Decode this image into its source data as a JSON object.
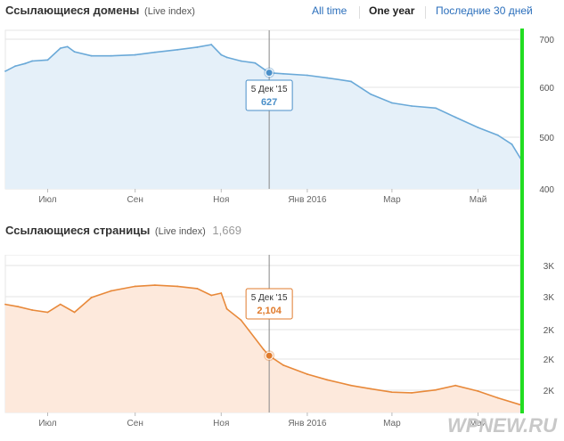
{
  "header": {
    "ranges": [
      "All time",
      "One year",
      "Последние 30 дней"
    ],
    "selected_range": "One year"
  },
  "watermark": "WPNEW.RU",
  "colors": {
    "referring_domains": "#6aa9d8",
    "referring_pages": "#e8893a",
    "marker_line": "#22dd22"
  },
  "chart_data": [
    {
      "type": "area",
      "title": "Ссылающиеся домены",
      "subtitle": "(Live index)",
      "x": [
        "2015-06-01",
        "2015-06-08",
        "2015-06-15",
        "2015-06-20",
        "2015-07-01",
        "2015-07-10",
        "2015-07-15",
        "2015-07-20",
        "2015-08-01",
        "2015-08-15",
        "2015-09-01",
        "2015-09-15",
        "2015-10-01",
        "2015-10-15",
        "2015-10-25",
        "2015-11-01",
        "2015-11-05",
        "2015-11-15",
        "2015-11-25",
        "2015-12-05",
        "2015-12-15",
        "2016-01-01",
        "2016-01-15",
        "2016-02-01",
        "2016-02-15",
        "2016-03-01",
        "2016-03-15",
        "2016-04-01",
        "2016-04-15",
        "2016-05-01",
        "2016-05-15",
        "2016-05-25",
        "2016-05-31"
      ],
      "values": [
        630,
        640,
        645,
        650,
        652,
        675,
        678,
        668,
        660,
        660,
        662,
        667,
        672,
        677,
        682,
        662,
        657,
        650,
        646,
        627,
        625,
        622,
        617,
        610,
        585,
        568,
        562,
        558,
        540,
        520,
        505,
        487,
        460
      ],
      "tick_labels_x": [
        "Июл",
        "Сен",
        "Ноя",
        "Янв 2016",
        "Мар",
        "Май"
      ],
      "tick_labels_y": [
        "700",
        "600",
        "500",
        "400"
      ],
      "ylim": [
        400,
        710
      ],
      "tooltip": {
        "date": "5 Дек '15",
        "value": "627"
      }
    },
    {
      "type": "area",
      "title": "Ссылающиеся страницы",
      "subtitle": "(Live index)",
      "total": "1,669",
      "x": [
        "2015-06-01",
        "2015-06-10",
        "2015-06-20",
        "2015-07-01",
        "2015-07-10",
        "2015-07-20",
        "2015-08-01",
        "2015-08-15",
        "2015-09-01",
        "2015-09-15",
        "2015-10-01",
        "2015-10-15",
        "2015-10-25",
        "2015-11-01",
        "2015-11-05",
        "2015-11-15",
        "2015-12-01",
        "2015-12-05",
        "2015-12-15",
        "2016-01-01",
        "2016-01-15",
        "2016-02-01",
        "2016-02-15",
        "2016-03-01",
        "2016-03-15",
        "2016-04-01",
        "2016-04-15",
        "2016-05-01",
        "2016-05-15",
        "2016-05-31"
      ],
      "values": [
        2560,
        2540,
        2510,
        2490,
        2560,
        2490,
        2620,
        2680,
        2720,
        2730,
        2720,
        2700,
        2640,
        2660,
        2520,
        2420,
        2160,
        2104,
        2020,
        1940,
        1890,
        1840,
        1810,
        1780,
        1775,
        1800,
        1840,
        1790,
        1730,
        1669
      ],
      "tick_labels_x": [
        "Июл",
        "Сен",
        "Ноя",
        "Янв 2016",
        "Мар",
        "Май"
      ],
      "tick_labels_y": [
        "3K",
        "3K",
        "2K",
        "2K",
        "2K"
      ],
      "ylim": [
        1600,
        3000
      ],
      "tooltip": {
        "date": "5 Дек '15",
        "value": "2,104"
      }
    }
  ]
}
